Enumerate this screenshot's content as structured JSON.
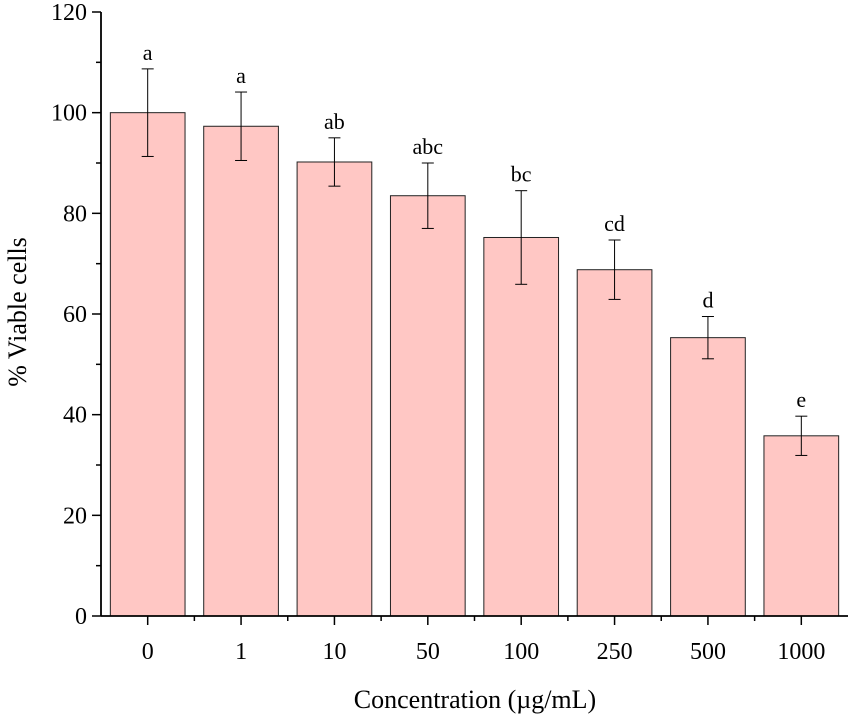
{
  "chart_data": {
    "type": "bar",
    "title": "",
    "xlabel": "Concentration (µg/mL)",
    "ylabel": "% Viable cells",
    "categories": [
      "0",
      "1",
      "10",
      "50",
      "100",
      "250",
      "500",
      "1000"
    ],
    "values": [
      100.0,
      97.3,
      90.2,
      83.5,
      75.2,
      68.8,
      55.3,
      35.8
    ],
    "error": [
      8.7,
      6.8,
      4.8,
      6.5,
      9.3,
      5.9,
      4.2,
      3.9
    ],
    "significance_labels": [
      "a",
      "a",
      "ab",
      "abc",
      "bc",
      "cd",
      "d",
      "e"
    ],
    "ylim": [
      0,
      120
    ],
    "yticks": [
      0,
      20,
      40,
      60,
      80,
      100,
      120
    ],
    "grid": false,
    "colors": {
      "bar_fill": "#ffc7c4",
      "bar_stroke": "#222222",
      "axis": "#000000"
    }
  }
}
